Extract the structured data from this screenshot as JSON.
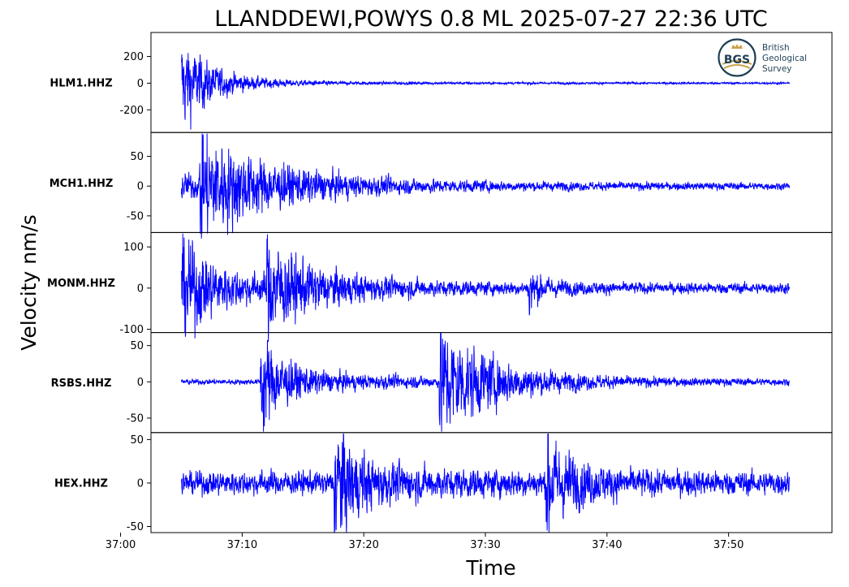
{
  "chart_data": {
    "type": "line",
    "title": "LLANDDEWI,POWYS 0.8 ML   2025-07-27 22:36 UTC",
    "ylabel": "Velocity nm/s",
    "xlabel": "Time",
    "time_axis": {
      "start_seconds": 5,
      "end_seconds": 55,
      "xlim": [
        2.5,
        58.5
      ],
      "ticks": [
        {
          "value": 0,
          "label": "37:00"
        },
        {
          "value": 10,
          "label": "37:10"
        },
        {
          "value": 20,
          "label": "37:20"
        },
        {
          "value": 30,
          "label": "37:30"
        },
        {
          "value": 40,
          "label": "37:40"
        },
        {
          "value": 50,
          "label": "37:50"
        }
      ]
    },
    "line_color": "#0000ff",
    "series": [
      {
        "name": "HLM1.HHZ",
        "ylim": [
          -370,
          380
        ],
        "yticks": [
          {
            "value": 200,
            "label": "200"
          },
          {
            "value": 0,
            "label": "0"
          },
          {
            "value": -200,
            "label": "-200"
          }
        ],
        "noise": 6,
        "events": [
          {
            "t": 0.0,
            "amp": 190,
            "decay": 2.2,
            "onset": "P"
          },
          {
            "t": 4.6,
            "amp": 280,
            "decay": 2.6,
            "onset": "S"
          }
        ],
        "coda_amp": 30,
        "coda_decay": 9
      },
      {
        "name": "MCH1.HHZ",
        "ylim": [
          -78,
          90
        ],
        "yticks": [
          {
            "value": 50,
            "label": "50"
          },
          {
            "value": 0,
            "label": "0"
          },
          {
            "value": -50,
            "label": "-50"
          }
        ],
        "noise": 4,
        "events": [
          {
            "t": 0.6,
            "amp": 55,
            "decay": 2.0,
            "onset": "P"
          },
          {
            "t": 6.5,
            "amp": 68,
            "decay": 5.5,
            "onset": "S"
          }
        ],
        "coda_amp": 12,
        "coda_decay": 20
      },
      {
        "name": "MONM.HHZ",
        "ylim": [
          -108,
          135
        ],
        "yticks": [
          {
            "value": 100,
            "label": "100"
          },
          {
            "value": 0,
            "label": "0"
          },
          {
            "value": -100,
            "label": "-100"
          }
        ],
        "noise": 10,
        "events": [
          {
            "t": 4.3,
            "amp": 110,
            "decay": 2.5,
            "onset": "P"
          },
          {
            "t": 12.0,
            "amp": 75,
            "decay": 4.0,
            "onset": "S"
          },
          {
            "t": 33.5,
            "amp": 28,
            "decay": 1.5,
            "onset": "P"
          }
        ],
        "coda_amp": 20,
        "coda_decay": 14
      },
      {
        "name": "RSBS.HHZ",
        "ylim": [
          -70,
          68
        ],
        "yticks": [
          {
            "value": 50,
            "label": "50"
          },
          {
            "value": 0,
            "label": "0"
          },
          {
            "value": -50,
            "label": "-50"
          }
        ],
        "noise": 3,
        "events": [
          {
            "t": 11.5,
            "amp": 48,
            "decay": 2.0,
            "onset": "P"
          },
          {
            "t": 26.2,
            "amp": 62,
            "decay": 4.5,
            "onset": "S"
          }
        ],
        "coda_amp": 8,
        "coda_decay": 18
      },
      {
        "name": "HEX.HHZ",
        "ylim": [
          -57,
          58
        ],
        "yticks": [
          {
            "value": 50,
            "label": "50"
          },
          {
            "value": 0,
            "label": "0"
          },
          {
            "value": -50,
            "label": "-50"
          }
        ],
        "noise": 11,
        "events": [
          {
            "t": 17.5,
            "amp": 45,
            "decay": 1.8,
            "onset": "P"
          },
          {
            "t": 35.0,
            "amp": 35,
            "decay": 2.5,
            "onset": "S"
          }
        ],
        "coda_amp": 8,
        "coda_decay": 10
      }
    ]
  },
  "logo": {
    "monogram": "BGS",
    "lines": [
      "British",
      "Geological",
      "Survey"
    ]
  }
}
